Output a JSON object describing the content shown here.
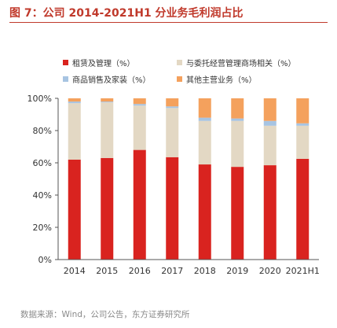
{
  "page": {
    "title": "图 7：公司 2014-2021H1 分业务毛利润占比",
    "source": "数据来源：Wind，公司公告，东方证券研究所"
  },
  "chart_data": {
    "type": "bar",
    "stacked": true,
    "categories": [
      "2014",
      "2015",
      "2016",
      "2017",
      "2018",
      "2019",
      "2020",
      "2021H1"
    ],
    "yticks": [
      "0%",
      "20%",
      "40%",
      "60%",
      "80%",
      "100%"
    ],
    "ylim": [
      0,
      100
    ],
    "legend_position": "top",
    "grid": false,
    "series": [
      {
        "name": "租赁及管理（%）",
        "color": "#d9231f",
        "values": [
          62,
          63,
          68,
          63.5,
          59,
          57.5,
          58.5,
          62.5
        ]
      },
      {
        "name": "与委托经营管理商场相关（%）",
        "color": "#e3d8c4",
        "values": [
          35,
          34.5,
          27.5,
          30.5,
          27,
          28.5,
          24.5,
          20.5
        ]
      },
      {
        "name": "商品销售及家装（%）",
        "color": "#a7c4e2",
        "values": [
          1,
          0.5,
          1,
          1,
          2,
          1.5,
          3,
          1.5
        ]
      },
      {
        "name": "其他主营业务（%）",
        "color": "#f4a15d",
        "values": [
          2,
          2,
          3.5,
          5,
          12,
          12.5,
          14,
          15.5
        ]
      }
    ]
  }
}
